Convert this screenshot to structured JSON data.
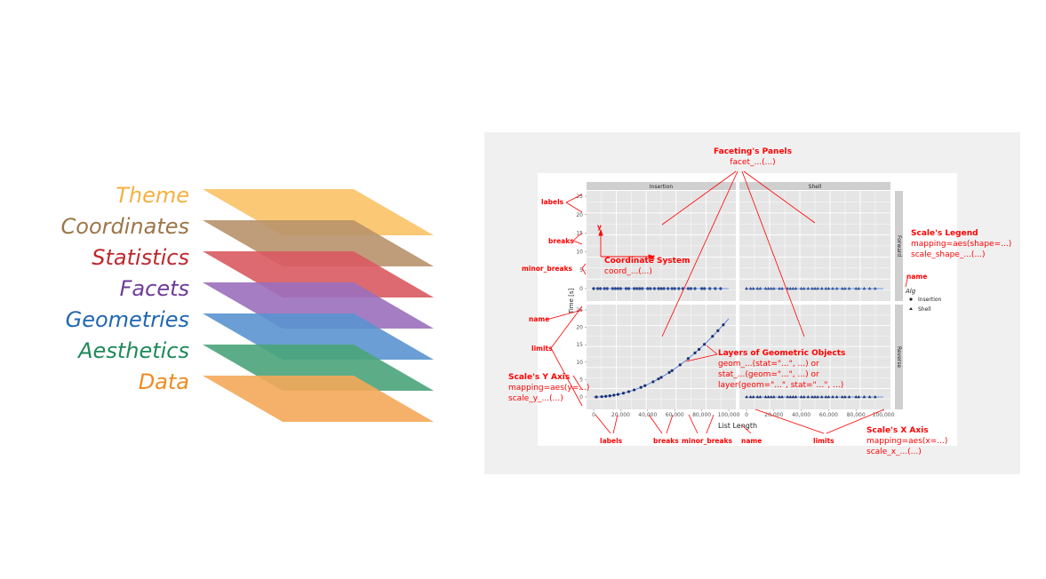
{
  "layers": [
    {
      "label": "Theme",
      "color": "#f7b042",
      "fill": "#fbc266"
    },
    {
      "label": "Coordinates",
      "color": "#9c7548",
      "fill": "#b8926b"
    },
    {
      "label": "Statistics",
      "color": "#c0272d",
      "fill": "#d85a60"
    },
    {
      "label": "Facets",
      "color": "#6e3b99",
      "fill": "#9b6fbd"
    },
    {
      "label": "Geometries",
      "color": "#2167b0",
      "fill": "#5a93cf"
    },
    {
      "label": "Aesthetics",
      "color": "#1f8a5a",
      "fill": "#4aa47a"
    },
    {
      "label": "Data",
      "color": "#f08a1e",
      "fill": "#f4a95a"
    }
  ],
  "figure": {
    "facet_cols": [
      "Insertion",
      "Shell"
    ],
    "facet_rows": [
      "Forward",
      "Reverse"
    ],
    "y_axis_title": "Time [s]",
    "x_axis_title": "List Length",
    "y_ticks": [
      "0",
      "5",
      "10",
      "15",
      "20",
      "25"
    ],
    "x_ticks": [
      "0",
      "20,000",
      "40,000",
      "60,000",
      "80,000",
      "100,000"
    ],
    "legend_title": "Alg",
    "legend_items": [
      "Insertion",
      "Shell"
    ]
  },
  "annotations": {
    "facet_title": "Faceting's Panels",
    "facet_code": "facet_...(...)",
    "coord_title": "Coordinate System",
    "coord_code": "coord_...(...)",
    "coord_y": "y",
    "coord_x": "x",
    "legend_title": "Scale's Legend",
    "legend_line1": "mapping=aes(shape=...)",
    "legend_line2": "scale_shape_...(...)",
    "legend_name": "name",
    "geom_title": "Layers of Geometric Objects",
    "geom_line1": "geom_...(stat=\"...\", ...) or",
    "geom_line2": "stat_...(geom=\"...\", ...) or",
    "geom_line3": "layer(geom=\"...\", stat=\"...\", ...)",
    "yaxis_title": "Scale's Y Axis",
    "yaxis_line1": "mapping=aes(y=...)",
    "yaxis_line2": "scale_y_...(...)",
    "xaxis_title": "Scale's X Axis",
    "xaxis_line1": "mapping=aes(x=...)",
    "xaxis_line2": "scale_x_...(...)",
    "y_labels": "labels",
    "y_breaks": "breaks",
    "y_minor_breaks": "minor_breaks",
    "y_name": "name",
    "y_limits": "limits",
    "x_labels": "labels",
    "x_breaks": "breaks",
    "x_minor_breaks": "minor_breaks",
    "x_name": "name",
    "x_limits": "limits"
  }
}
